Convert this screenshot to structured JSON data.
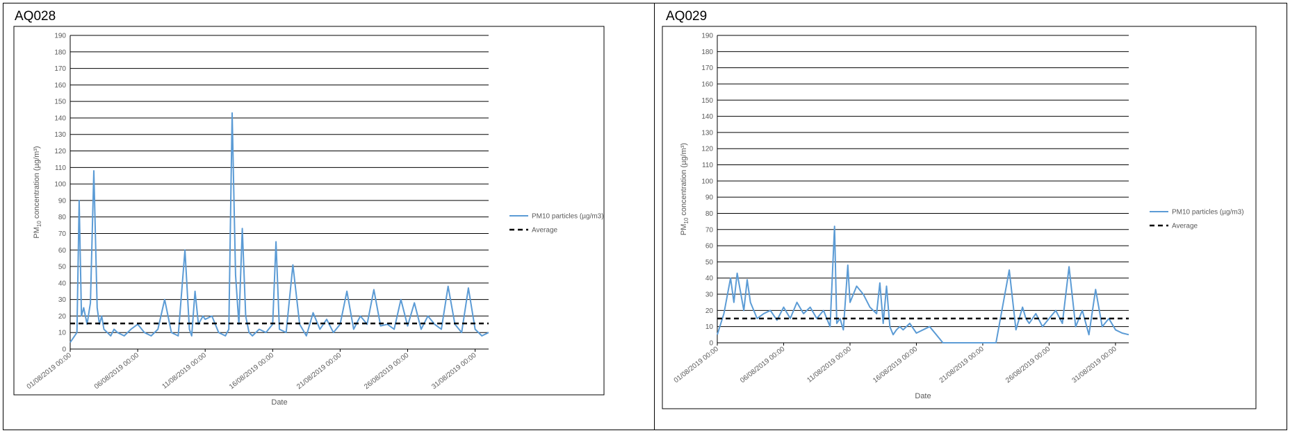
{
  "panels": [
    {
      "id": "AQ028"
    },
    {
      "id": "AQ029"
    }
  ],
  "chart_data": [
    {
      "type": "line",
      "title": "",
      "ylabel": "PM10 concentration (µg/m³)",
      "ylabel_main": "PM",
      "ylabel_sub": "10",
      "ylabel_rest": " concentration (µg/m³)",
      "xlabel": "Date",
      "ylim": [
        0,
        190
      ],
      "ytick_step": 10,
      "xlim": [
        "2019-08-01",
        "2019-09-01"
      ],
      "xtick_labels": [
        "01/08/2019 00:00",
        "06/08/2019 00:00",
        "11/08/2019 00:00",
        "16/08/2019 00:00",
        "21/08/2019 00:00",
        "26/08/2019 00:00",
        "31/08/2019 00:00"
      ],
      "grid": true,
      "legend_position": "right",
      "series_color": "#5b9bd5",
      "series": [
        {
          "name": "PM10 particles (µg/m3)",
          "style": "solid",
          "x": [
            "2019-08-01",
            "2019-08-01 12:00",
            "2019-08-01 16:00",
            "2019-08-01 20:00",
            "2019-08-02",
            "2019-08-02 06:00",
            "2019-08-02 12:00",
            "2019-08-02 18:00",
            "2019-08-03",
            "2019-08-03 04:00",
            "2019-08-03 08:00",
            "2019-08-03 12:00",
            "2019-08-03 18:00",
            "2019-08-04",
            "2019-08-04 06:00",
            "2019-08-04 12:00",
            "2019-08-05",
            "2019-08-05 12:00",
            "2019-08-06",
            "2019-08-06 12:00",
            "2019-08-07",
            "2019-08-07 12:00",
            "2019-08-08",
            "2019-08-08 12:00",
            "2019-08-09",
            "2019-08-09 12:00",
            "2019-08-09 20:00",
            "2019-08-10",
            "2019-08-10 06:00",
            "2019-08-10 12:00",
            "2019-08-10 20:00",
            "2019-08-11",
            "2019-08-11 12:00",
            "2019-08-12",
            "2019-08-12 12:00",
            "2019-08-12 18:00",
            "2019-08-13",
            "2019-08-13 06:00",
            "2019-08-13 12:00",
            "2019-08-13 18:00",
            "2019-08-14",
            "2019-08-14 06:00",
            "2019-08-14 12:00",
            "2019-08-15",
            "2019-08-15 12:00",
            "2019-08-16",
            "2019-08-16 06:00",
            "2019-08-16 12:00",
            "2019-08-17",
            "2019-08-17 12:00",
            "2019-08-18",
            "2019-08-18 12:00",
            "2019-08-19",
            "2019-08-19 12:00",
            "2019-08-20",
            "2019-08-20 12:00",
            "2019-08-21",
            "2019-08-21 12:00",
            "2019-08-22",
            "2019-08-22 12:00",
            "2019-08-23",
            "2019-08-23 12:00",
            "2019-08-24",
            "2019-08-24 12:00",
            "2019-08-25",
            "2019-08-25 12:00",
            "2019-08-26",
            "2019-08-26 12:00",
            "2019-08-27",
            "2019-08-27 12:00",
            "2019-08-28",
            "2019-08-28 12:00",
            "2019-08-29",
            "2019-08-29 12:00",
            "2019-08-30",
            "2019-08-30 12:00",
            "2019-08-31",
            "2019-08-31 12:00",
            "2019-09-01"
          ],
          "values": [
            4,
            10,
            90,
            20,
            25,
            15,
            28,
            108,
            25,
            15,
            20,
            12,
            10,
            8,
            12,
            10,
            8,
            12,
            15,
            10,
            8,
            12,
            30,
            10,
            8,
            60,
            12,
            8,
            35,
            15,
            20,
            18,
            20,
            10,
            8,
            12,
            143,
            45,
            15,
            73,
            20,
            10,
            8,
            12,
            10,
            15,
            65,
            12,
            10,
            51,
            15,
            8,
            22,
            12,
            18,
            10,
            15,
            35,
            12,
            20,
            15,
            36,
            14,
            15,
            12,
            30,
            14,
            28,
            12,
            20,
            15,
            12,
            38,
            15,
            10,
            37,
            12,
            8,
            10
          ]
        },
        {
          "name": "Average",
          "style": "dashed",
          "x": [
            "2019-08-01",
            "2019-09-01"
          ],
          "values": [
            15.5,
            15.5
          ]
        }
      ]
    },
    {
      "type": "line",
      "title": "",
      "ylabel": "PM10 concentration (µg/m³)",
      "ylabel_main": "PM",
      "ylabel_sub": "10",
      "ylabel_rest": " concentration (µg/m³)",
      "xlabel": "Date",
      "ylim": [
        0,
        190
      ],
      "ytick_step": 10,
      "xlim": [
        "2019-08-01",
        "2019-09-01"
      ],
      "xtick_labels": [
        "01/08/2019 00:00",
        "06/08/2019 00:00",
        "11/08/2019 00:00",
        "16/08/2019 00:00",
        "21/08/2019 00:00",
        "26/08/2019 00:00",
        "31/08/2019 00:00"
      ],
      "grid": true,
      "legend_position": "right",
      "series_color": "#5b9bd5",
      "series": [
        {
          "name": "PM10 particles (µg/m3)",
          "style": "solid",
          "x": [
            "2019-08-01",
            "2019-08-01 12:00",
            "2019-08-02",
            "2019-08-02 06:00",
            "2019-08-02 12:00",
            "2019-08-03",
            "2019-08-03 06:00",
            "2019-08-03 12:00",
            "2019-08-04",
            "2019-08-04 12:00",
            "2019-08-05",
            "2019-08-05 12:00",
            "2019-08-06",
            "2019-08-06 12:00",
            "2019-08-07",
            "2019-08-07 12:00",
            "2019-08-08",
            "2019-08-08 12:00",
            "2019-08-09",
            "2019-08-09 12:00",
            "2019-08-09 20:00",
            "2019-08-10",
            "2019-08-10 06:00",
            "2019-08-10 12:00",
            "2019-08-10 20:00",
            "2019-08-11",
            "2019-08-11 12:00",
            "2019-08-12",
            "2019-08-12 12:00",
            "2019-08-13",
            "2019-08-13 06:00",
            "2019-08-13 12:00",
            "2019-08-13 18:00",
            "2019-08-14",
            "2019-08-14 06:00",
            "2019-08-14 12:00",
            "2019-08-14 18:00",
            "2019-08-15",
            "2019-08-15 12:00",
            "2019-08-16",
            "2019-08-16 12:00",
            "2019-08-17",
            "2019-08-17 12:00",
            "2019-08-18",
            "2019-08-18 06:00",
            "2019-08-18 12:00",
            "2019-08-19",
            "2019-08-20",
            "2019-08-21",
            "2019-08-22",
            "2019-08-23",
            "2019-08-23 12:00",
            "2019-08-24",
            "2019-08-24 06:00",
            "2019-08-24 12:00",
            "2019-08-25",
            "2019-08-25 12:00",
            "2019-08-26",
            "2019-08-26 12:00",
            "2019-08-27",
            "2019-08-27 12:00",
            "2019-08-28",
            "2019-08-28 12:00",
            "2019-08-29",
            "2019-08-29 12:00",
            "2019-08-30",
            "2019-08-30 12:00",
            "2019-08-31",
            "2019-08-31 12:00",
            "2019-09-01"
          ],
          "values": [
            5,
            18,
            40,
            25,
            43,
            20,
            39,
            25,
            15,
            18,
            20,
            14,
            22,
            15,
            25,
            18,
            22,
            15,
            20,
            10,
            72,
            12,
            15,
            8,
            48,
            25,
            35,
            30,
            22,
            18,
            37,
            12,
            35,
            10,
            5,
            8,
            10,
            8,
            12,
            6,
            8,
            10,
            5,
            0,
            0,
            0,
            0,
            0,
            0,
            0,
            45,
            8,
            22,
            15,
            12,
            18,
            10,
            15,
            20,
            12,
            47,
            10,
            20,
            5,
            33,
            10,
            15,
            8,
            6,
            5
          ]
        },
        {
          "name": "Average",
          "style": "dashed",
          "x": [
            "2019-08-01",
            "2019-09-01"
          ],
          "values": [
            15,
            15
          ]
        }
      ]
    }
  ]
}
